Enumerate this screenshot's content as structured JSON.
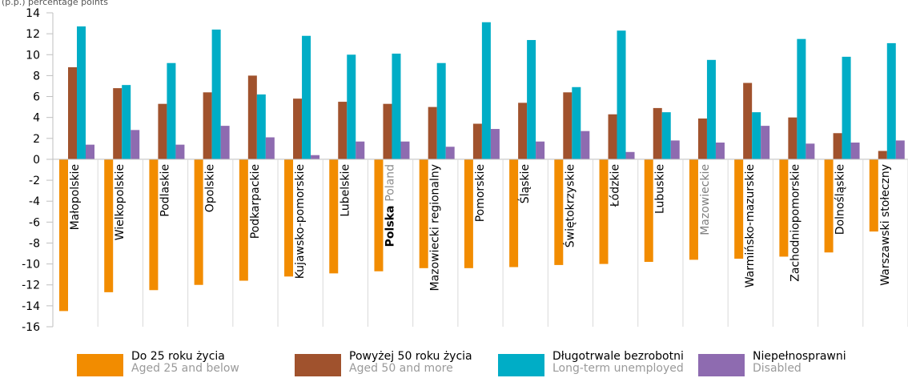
{
  "header_fragment": "(p.p.) percentage points",
  "chart_data": {
    "type": "bar",
    "ylim": [
      -16,
      14
    ],
    "yticks": [
      14,
      12,
      10,
      8,
      6,
      4,
      2,
      0,
      -2,
      -4,
      -6,
      -8,
      -10,
      -12,
      -14,
      -16
    ],
    "grid": false,
    "legend_position": "bottom",
    "categories": [
      {
        "bold": "",
        "rest": "Małopolskie",
        "grey": false
      },
      {
        "bold": "",
        "rest": "Wielkopolskie",
        "grey": false
      },
      {
        "bold": "",
        "rest": "Podlaskie",
        "grey": false
      },
      {
        "bold": "",
        "rest": "Opolskie",
        "grey": false
      },
      {
        "bold": "",
        "rest": "Podkarpackie",
        "grey": false
      },
      {
        "bold": "",
        "rest": "Kujawsko-pomorskie",
        "grey": false
      },
      {
        "bold": "",
        "rest": "Lubelskie",
        "grey": false
      },
      {
        "bold": "Polska",
        "rest": "Poland",
        "grey": false
      },
      {
        "bold": "",
        "rest": "Mazowiecki regionalny",
        "grey": false
      },
      {
        "bold": "",
        "rest": "Pomorskie",
        "grey": false
      },
      {
        "bold": "",
        "rest": "Śląskie",
        "grey": false
      },
      {
        "bold": "",
        "rest": "Świętokrzyskie",
        "grey": false
      },
      {
        "bold": "",
        "rest": "Łódzkie",
        "grey": false
      },
      {
        "bold": "",
        "rest": "Lubuskie",
        "grey": false
      },
      {
        "bold": "",
        "rest": "Mazowieckie",
        "grey": true
      },
      {
        "bold": "",
        "rest": "Warmińsko-mazurskie",
        "grey": false
      },
      {
        "bold": "",
        "rest": "Zachodniopomorskie",
        "grey": false
      },
      {
        "bold": "",
        "rest": "Dolnośląskie",
        "grey": false
      },
      {
        "bold": "",
        "rest": "Warszawski stołeczny",
        "grey": false
      }
    ],
    "series": [
      {
        "name": "Do 25 roku życia",
        "name_en": "Aged 25 and below",
        "color": "#f28c00",
        "values": [
          -14.5,
          -12.7,
          -12.5,
          -12.0,
          -11.6,
          -11.2,
          -10.9,
          -10.7,
          -10.4,
          -10.4,
          -10.3,
          -10.1,
          -10.0,
          -9.8,
          -9.6,
          -9.5,
          -9.3,
          -8.9,
          -6.9
        ]
      },
      {
        "name": "Powyżej 50 roku życia",
        "name_en": "Aged 50 and more",
        "color": "#a0522d",
        "values": [
          8.8,
          6.8,
          5.3,
          6.4,
          8.0,
          5.8,
          5.5,
          5.3,
          5.0,
          3.4,
          5.4,
          6.4,
          4.3,
          4.9,
          3.9,
          7.3,
          4.0,
          2.5,
          0.8
        ]
      },
      {
        "name": "Długotrwale bezrobotni",
        "name_en": "Long-term unemployed",
        "color": "#00adc6",
        "values": [
          12.7,
          7.1,
          9.2,
          12.4,
          6.2,
          11.8,
          10.0,
          10.1,
          9.2,
          13.1,
          11.4,
          6.9,
          12.3,
          4.5,
          9.5,
          4.5,
          11.5,
          9.8,
          11.1
        ]
      },
      {
        "name": "Niepełnosprawni",
        "name_en": "Disabled",
        "color": "#8e6bb0",
        "values": [
          1.4,
          2.8,
          1.4,
          3.2,
          2.1,
          0.4,
          1.7,
          1.7,
          1.2,
          2.9,
          1.7,
          2.7,
          0.7,
          1.8,
          1.6,
          3.2,
          1.5,
          1.6,
          1.8
        ]
      }
    ]
  }
}
